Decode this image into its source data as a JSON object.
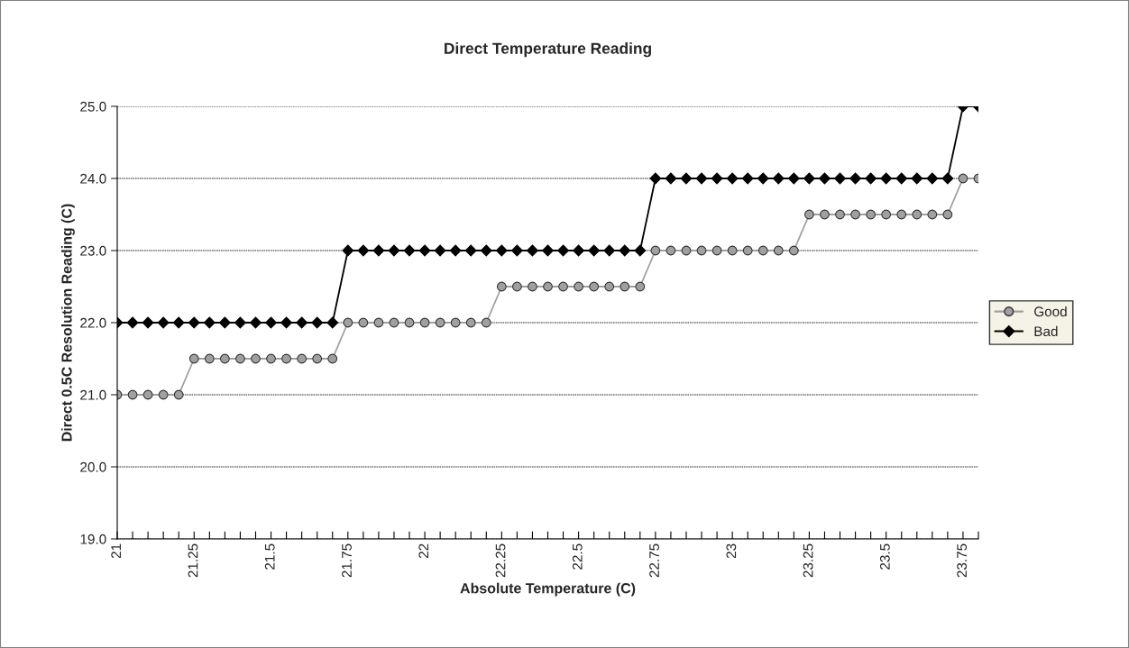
{
  "chart_data": {
    "type": "line",
    "title": "Direct Temperature Reading",
    "xlabel": "Absolute Temperature (C)",
    "ylabel": "Direct 0.5C Resolution Reading (C)",
    "categories": [
      "21",
      null,
      null,
      null,
      null,
      "21.25",
      null,
      null,
      null,
      null,
      "21.5",
      null,
      null,
      null,
      null,
      "21.75",
      null,
      null,
      null,
      null,
      "22",
      null,
      null,
      null,
      null,
      "22.25",
      null,
      null,
      null,
      null,
      "22.5",
      null,
      null,
      null,
      null,
      "22.75",
      null,
      null,
      null,
      null,
      "23",
      null,
      null,
      null,
      null,
      "23.25",
      null,
      null,
      null,
      null,
      "23.5",
      null,
      null,
      null,
      null,
      "23.75",
      null
    ],
    "series": [
      {
        "name": "Good",
        "color": "#a0a0a0",
        "marker": "circle",
        "values": [
          21.0,
          21.0,
          21.0,
          21.0,
          21.0,
          21.5,
          21.5,
          21.5,
          21.5,
          21.5,
          21.5,
          21.5,
          21.5,
          21.5,
          21.5,
          22.0,
          22.0,
          22.0,
          22.0,
          22.0,
          22.0,
          22.0,
          22.0,
          22.0,
          22.0,
          22.5,
          22.5,
          22.5,
          22.5,
          22.5,
          22.5,
          22.5,
          22.5,
          22.5,
          22.5,
          23.0,
          23.0,
          23.0,
          23.0,
          23.0,
          23.0,
          23.0,
          23.0,
          23.0,
          23.0,
          23.5,
          23.5,
          23.5,
          23.5,
          23.5,
          23.5,
          23.5,
          23.5,
          23.5,
          23.5,
          24.0,
          24.0
        ]
      },
      {
        "name": "Bad",
        "color": "#000000",
        "marker": "diamond",
        "values": [
          22.0,
          22.0,
          22.0,
          22.0,
          22.0,
          22.0,
          22.0,
          22.0,
          22.0,
          22.0,
          22.0,
          22.0,
          22.0,
          22.0,
          22.0,
          23.0,
          23.0,
          23.0,
          23.0,
          23.0,
          23.0,
          23.0,
          23.0,
          23.0,
          23.0,
          23.0,
          23.0,
          23.0,
          23.0,
          23.0,
          23.0,
          23.0,
          23.0,
          23.0,
          23.0,
          24.0,
          24.0,
          24.0,
          24.0,
          24.0,
          24.0,
          24.0,
          24.0,
          24.0,
          24.0,
          24.0,
          24.0,
          24.0,
          24.0,
          24.0,
          24.0,
          24.0,
          24.0,
          24.0,
          24.0,
          25.0,
          25.0
        ]
      }
    ],
    "ylim": [
      19.0,
      25.0
    ],
    "yticks": [
      {
        "value": 19,
        "label": "19.0"
      },
      {
        "value": 20,
        "label": "20.0"
      },
      {
        "value": 21,
        "label": "21.0"
      },
      {
        "value": 22,
        "label": "22.0"
      },
      {
        "value": 23,
        "label": "23.0"
      },
      {
        "value": 24,
        "label": "24.0"
      },
      {
        "value": 25,
        "label": "25.0"
      }
    ],
    "grid": "y",
    "legend": "right",
    "line_style": "solid"
  }
}
